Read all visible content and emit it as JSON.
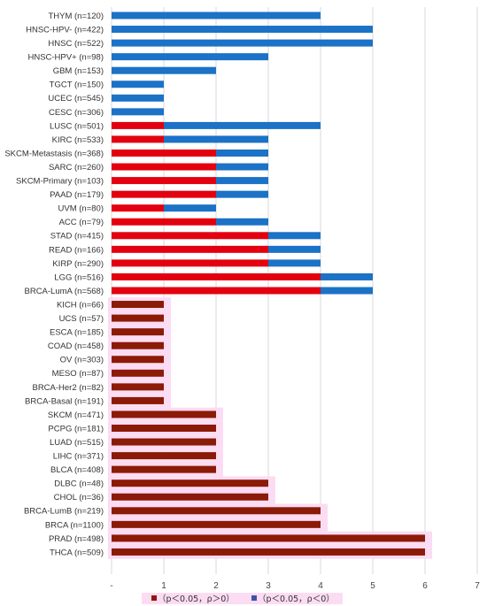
{
  "chart_data": {
    "type": "bar",
    "orientation": "horizontal",
    "stacked": true,
    "grid": true,
    "xlim": [
      0,
      7
    ],
    "x_ticks": [
      "-",
      "1",
      "2",
      "3",
      "4",
      "5",
      "6",
      "7"
    ],
    "legend": {
      "placement": "bottom",
      "entries": [
        {
          "label": "（p＜0.05，ρ＞0）",
          "color": "#8b1a06"
        },
        {
          "label": "（p＜0.05，ρ＜0）",
          "color": "#3f53a8"
        }
      ]
    },
    "rows": [
      {
        "label": "THYM (n=120)",
        "segments": [
          {
            "v": 4,
            "c": "#1b72c6"
          }
        ]
      },
      {
        "label": "HNSC-HPV- (n=422)",
        "segments": [
          {
            "v": 5,
            "c": "#1b72c6"
          }
        ]
      },
      {
        "label": "HNSC (n=522)",
        "segments": [
          {
            "v": 5,
            "c": "#1b72c6"
          }
        ]
      },
      {
        "label": "HNSC-HPV+ (n=98)",
        "segments": [
          {
            "v": 3,
            "c": "#1b72c6"
          }
        ]
      },
      {
        "label": "GBM (n=153)",
        "segments": [
          {
            "v": 2,
            "c": "#1b72c6"
          }
        ]
      },
      {
        "label": "TGCT (n=150)",
        "segments": [
          {
            "v": 1,
            "c": "#1b72c6"
          }
        ]
      },
      {
        "label": "UCEC (n=545)",
        "segments": [
          {
            "v": 1,
            "c": "#1b72c6"
          }
        ]
      },
      {
        "label": "CESC (n=306)",
        "segments": [
          {
            "v": 1,
            "c": "#1b72c6"
          }
        ]
      },
      {
        "label": "LUSC (n=501)",
        "segments": [
          {
            "v": 1,
            "c": "#e3000f"
          },
          {
            "v": 3,
            "c": "#1b72c6"
          }
        ]
      },
      {
        "label": "KIRC (n=533)",
        "segments": [
          {
            "v": 1,
            "c": "#e3000f"
          },
          {
            "v": 2,
            "c": "#1b72c6"
          }
        ]
      },
      {
        "label": "SKCM-Metastasis (n=368)",
        "segments": [
          {
            "v": 2,
            "c": "#e3000f"
          },
          {
            "v": 1,
            "c": "#1b72c6"
          }
        ]
      },
      {
        "label": "SARC (n=260)",
        "segments": [
          {
            "v": 2,
            "c": "#e3000f"
          },
          {
            "v": 1,
            "c": "#1b72c6"
          }
        ]
      },
      {
        "label": "SKCM-Primary (n=103)",
        "segments": [
          {
            "v": 2,
            "c": "#e3000f"
          },
          {
            "v": 1,
            "c": "#1b72c6"
          }
        ]
      },
      {
        "label": "PAAD (n=179)",
        "segments": [
          {
            "v": 2,
            "c": "#e3000f"
          },
          {
            "v": 1,
            "c": "#1b72c6"
          }
        ]
      },
      {
        "label": "UVM (n=80)",
        "segments": [
          {
            "v": 1,
            "c": "#e3000f"
          },
          {
            "v": 1,
            "c": "#1b72c6"
          }
        ]
      },
      {
        "label": "ACC (n=79)",
        "segments": [
          {
            "v": 2,
            "c": "#e3000f"
          },
          {
            "v": 1,
            "c": "#1b72c6"
          }
        ]
      },
      {
        "label": "STAD (n=415)",
        "segments": [
          {
            "v": 3,
            "c": "#e3000f"
          },
          {
            "v": 1,
            "c": "#1b72c6"
          }
        ]
      },
      {
        "label": "READ (n=166)",
        "segments": [
          {
            "v": 3,
            "c": "#e3000f"
          },
          {
            "v": 1,
            "c": "#1b72c6"
          }
        ]
      },
      {
        "label": "KIRP (n=290)",
        "segments": [
          {
            "v": 3,
            "c": "#e3000f"
          },
          {
            "v": 1,
            "c": "#1b72c6"
          }
        ]
      },
      {
        "label": "LGG (n=516)",
        "segments": [
          {
            "v": 4,
            "c": "#e3000f"
          },
          {
            "v": 1,
            "c": "#1b72c6"
          }
        ]
      },
      {
        "label": "BRCA-LumA (n=568)",
        "segments": [
          {
            "v": 4,
            "c": "#e3000f"
          },
          {
            "v": 1,
            "c": "#1b72c6"
          }
        ]
      },
      {
        "label": "KICH (n=66)",
        "segments": [
          {
            "v": 1,
            "c": "#8b1a06"
          }
        ],
        "hl": true
      },
      {
        "label": "UCS (n=57)",
        "segments": [
          {
            "v": 1,
            "c": "#8b1a06"
          }
        ],
        "hl": true
      },
      {
        "label": "ESCA (n=185)",
        "segments": [
          {
            "v": 1,
            "c": "#8b1a06"
          }
        ],
        "hl": true
      },
      {
        "label": "COAD (n=458)",
        "segments": [
          {
            "v": 1,
            "c": "#8b1a06"
          }
        ],
        "hl": true
      },
      {
        "label": "OV (n=303)",
        "segments": [
          {
            "v": 1,
            "c": "#8b1a06"
          }
        ],
        "hl": true
      },
      {
        "label": "MESO (n=87)",
        "segments": [
          {
            "v": 1,
            "c": "#8b1a06"
          }
        ],
        "hl": true
      },
      {
        "label": "BRCA-Her2 (n=82)",
        "segments": [
          {
            "v": 1,
            "c": "#8b1a06"
          }
        ],
        "hl": true
      },
      {
        "label": "BRCA-Basal (n=191)",
        "segments": [
          {
            "v": 1,
            "c": "#8b1a06"
          }
        ],
        "hl": true
      },
      {
        "label": "SKCM (n=471)",
        "segments": [
          {
            "v": 2,
            "c": "#8b1a06"
          }
        ],
        "hl": true
      },
      {
        "label": "PCPG (n=181)",
        "segments": [
          {
            "v": 2,
            "c": "#8b1a06"
          }
        ],
        "hl": true
      },
      {
        "label": "LUAD (n=515)",
        "segments": [
          {
            "v": 2,
            "c": "#8b1a06"
          }
        ],
        "hl": true
      },
      {
        "label": "LIHC (n=371)",
        "segments": [
          {
            "v": 2,
            "c": "#8b1a06"
          }
        ],
        "hl": true
      },
      {
        "label": "BLCA (n=408)",
        "segments": [
          {
            "v": 2,
            "c": "#8b1a06"
          }
        ],
        "hl": true
      },
      {
        "label": "DLBC (n=48)",
        "segments": [
          {
            "v": 3,
            "c": "#8b1a06"
          }
        ],
        "hl": true
      },
      {
        "label": "CHOL (n=36)",
        "segments": [
          {
            "v": 3,
            "c": "#8b1a06"
          }
        ],
        "hl": true
      },
      {
        "label": "BRCA-LumB (n=219)",
        "segments": [
          {
            "v": 4,
            "c": "#8b1a06"
          }
        ],
        "hl": true
      },
      {
        "label": "BRCA (n=1100)",
        "segments": [
          {
            "v": 4,
            "c": "#8b1a06"
          }
        ],
        "hl": true
      },
      {
        "label": "PRAD (n=498)",
        "segments": [
          {
            "v": 6,
            "c": "#8b1a06"
          }
        ],
        "hl": true
      },
      {
        "label": "THCA (n=509)",
        "segments": [
          {
            "v": 6,
            "c": "#8b1a06"
          }
        ],
        "hl": true
      }
    ],
    "highlight_color": "#fbdcf3"
  }
}
